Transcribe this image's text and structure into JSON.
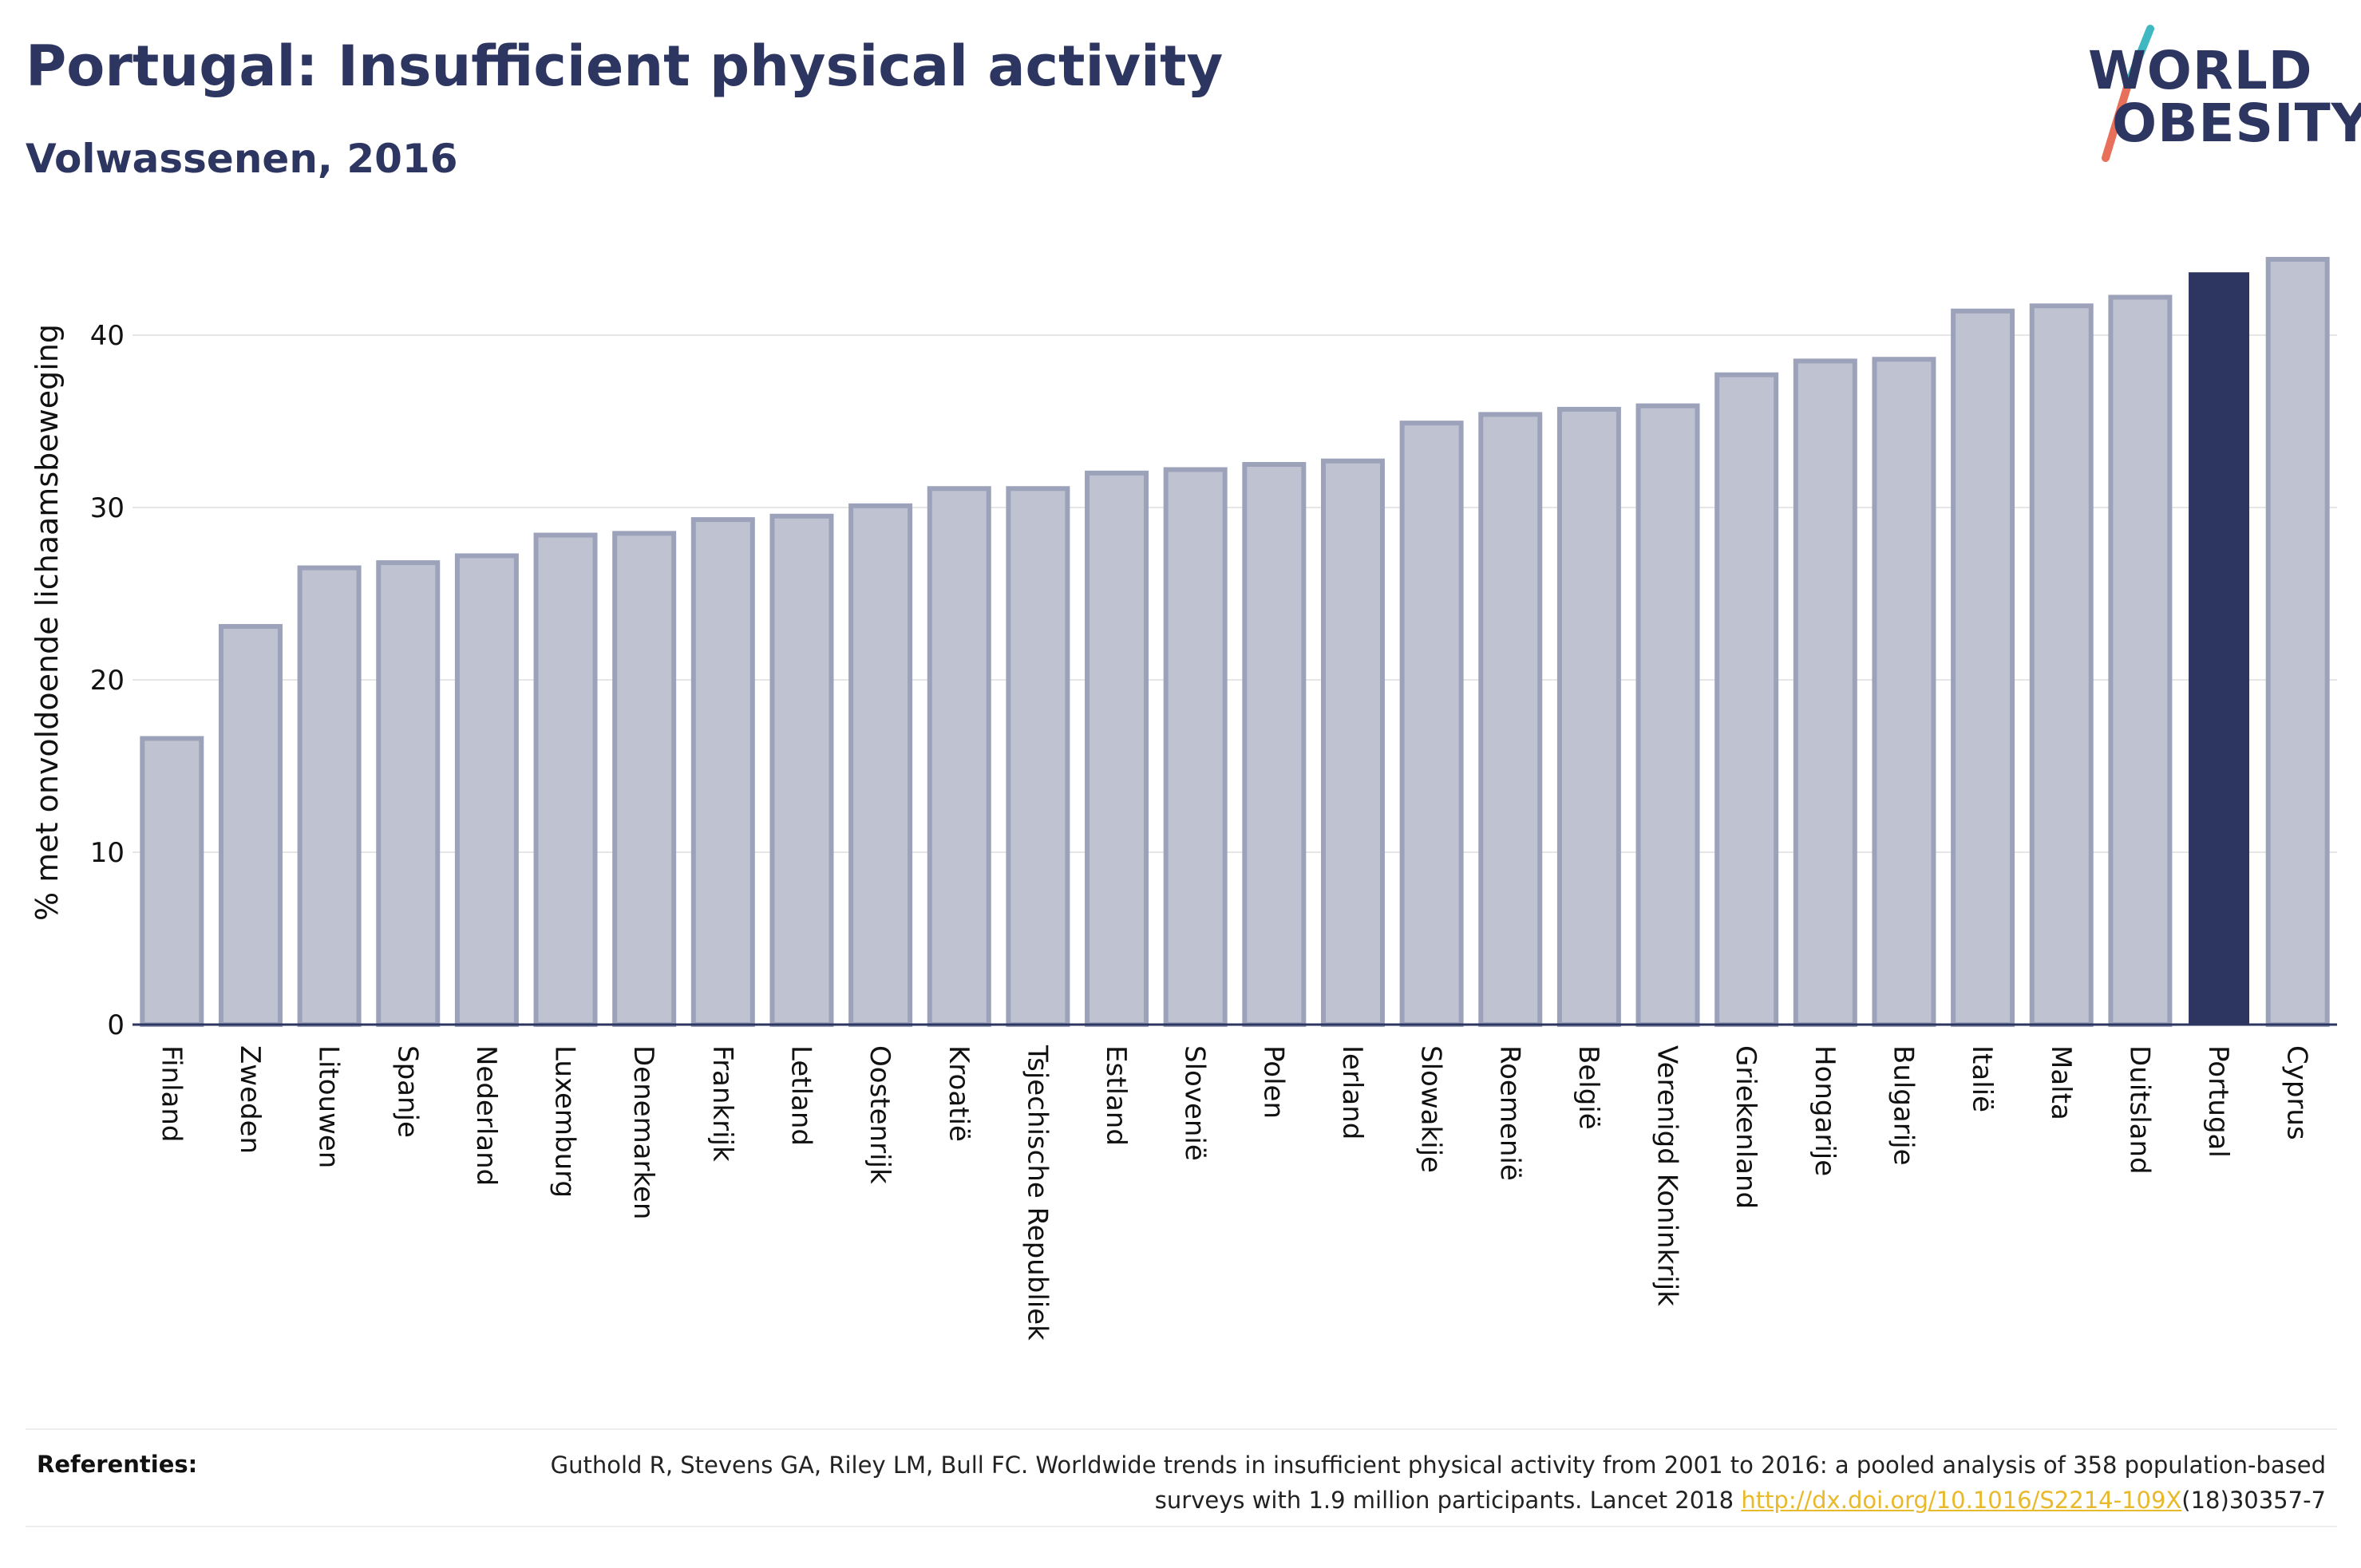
{
  "header": {
    "title": "Portugal: Insufficient physical activity",
    "subtitle": "Volwassenen, 2016"
  },
  "logo": {
    "line1": "WORLD",
    "line2": "OBESITY",
    "slash_color_top": "#3fb8c2",
    "slash_color_bottom": "#e8705a"
  },
  "colors": {
    "bar_fill": "#bfc3d1",
    "bar_stroke": "#9ca2ba",
    "highlight_fill": "#2d3561",
    "axis": "#2d3561",
    "grid": "#e6e6e6"
  },
  "chart_data": {
    "type": "bar",
    "title": "Portugal: Insufficient physical activity",
    "subtitle": "Volwassenen, 2016",
    "xlabel": "",
    "ylabel": "% met onvoldoende lichaamsbeweging",
    "ylim": [
      0,
      45
    ],
    "yticks": [
      0,
      10,
      20,
      30,
      40
    ],
    "grid": true,
    "highlight": "Portugal",
    "categories": [
      "Finland",
      "Zweden",
      "Litouwen",
      "Spanje",
      "Nederland",
      "Luxemburg",
      "Denemarken",
      "Frankrijk",
      "Letland",
      "Oostenrijk",
      "Kroatië",
      "Tsjechische Republiek",
      "Estland",
      "Slovenië",
      "Polen",
      "Ierland",
      "Slowakije",
      "Roemenië",
      "België",
      "Verenigd Koninkrijk",
      "Griekenland",
      "Hongarije",
      "Bulgarije",
      "Italië",
      "Malta",
      "Duitsland",
      "Portugal",
      "Cyprus"
    ],
    "values": [
      16.6,
      23.1,
      26.5,
      26.8,
      27.2,
      28.4,
      28.5,
      29.3,
      29.5,
      30.1,
      31.1,
      31.1,
      32.0,
      32.2,
      32.5,
      32.7,
      34.9,
      35.4,
      35.7,
      35.9,
      37.7,
      38.5,
      38.6,
      41.4,
      41.7,
      42.2,
      43.6,
      44.4
    ]
  },
  "references": {
    "label": "Referenties:",
    "text_before_link": "Guthold R, Stevens GA, Riley LM, Bull FC. Worldwide trends in insufficient physical activity from 2001 to 2016: a pooled analysis of 358 population-based surveys with 1.9 million participants. Lancet 2018 ",
    "link": "http://dx.doi.org/10.1016/S2214-109X",
    "text_after_link": "(18)30357-7"
  }
}
